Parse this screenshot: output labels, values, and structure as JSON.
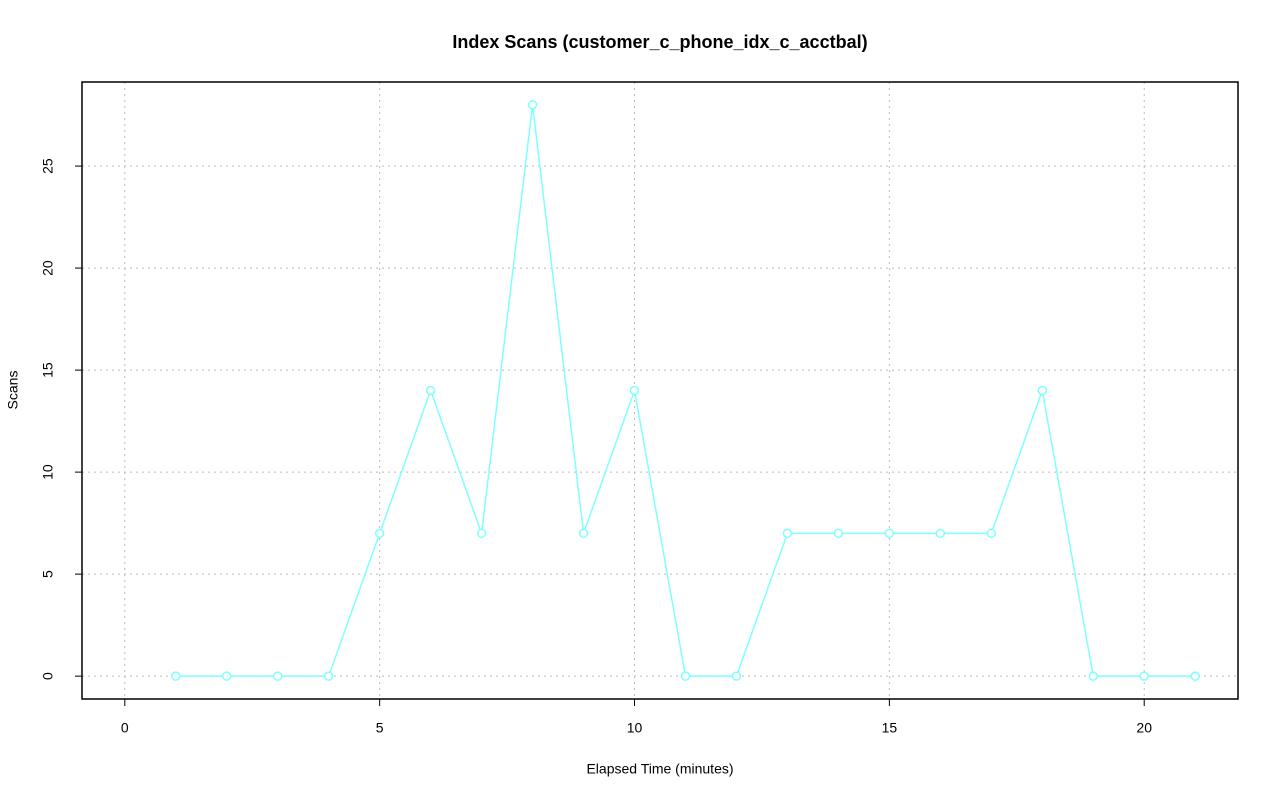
{
  "chart_data": {
    "type": "line",
    "title": "Index Scans (customer_c_phone_idx_c_acctbal)",
    "x_label": "Elapsed Time (minutes)",
    "y_label": "Scans",
    "x": [
      1,
      2,
      3,
      4,
      5,
      6,
      7,
      8,
      9,
      10,
      11,
      12,
      13,
      14,
      15,
      16,
      17,
      18,
      19,
      20,
      21
    ],
    "series": [
      {
        "name": "Scans",
        "color": "#7fffff",
        "values": [
          0,
          0,
          0,
          0,
          7,
          14,
          7,
          28,
          7,
          14,
          0,
          0,
          7,
          7,
          7,
          7,
          7,
          14,
          0,
          0,
          0
        ]
      }
    ],
    "xlim": [
      -0.84,
      21.84
    ],
    "xticks": [
      0,
      5,
      10,
      15,
      20
    ],
    "ylim": [
      -1.12,
      29.12
    ],
    "yticks": [
      0,
      5,
      10,
      15,
      20,
      25
    ],
    "grid": true
  }
}
